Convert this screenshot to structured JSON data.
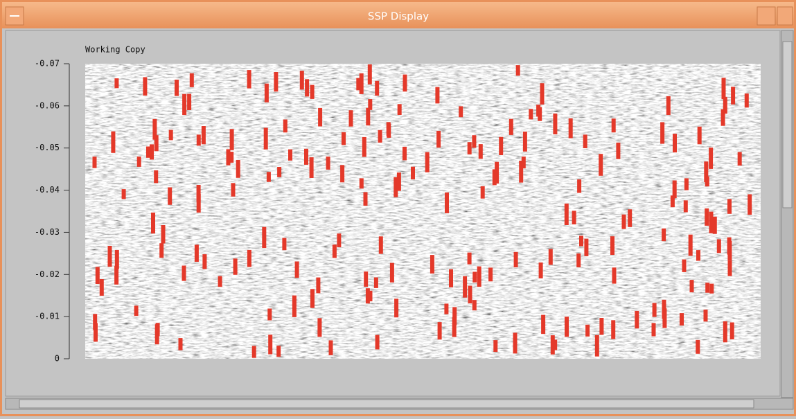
{
  "window": {
    "title": "SSP Display"
  },
  "chart_data": {
    "type": "heatmap",
    "subtitle": "Working Copy",
    "ylim": [
      0,
      -0.07
    ],
    "yticks": [
      0,
      -0.01,
      -0.02,
      -0.03,
      -0.04,
      -0.05,
      -0.06,
      -0.07
    ]
  }
}
